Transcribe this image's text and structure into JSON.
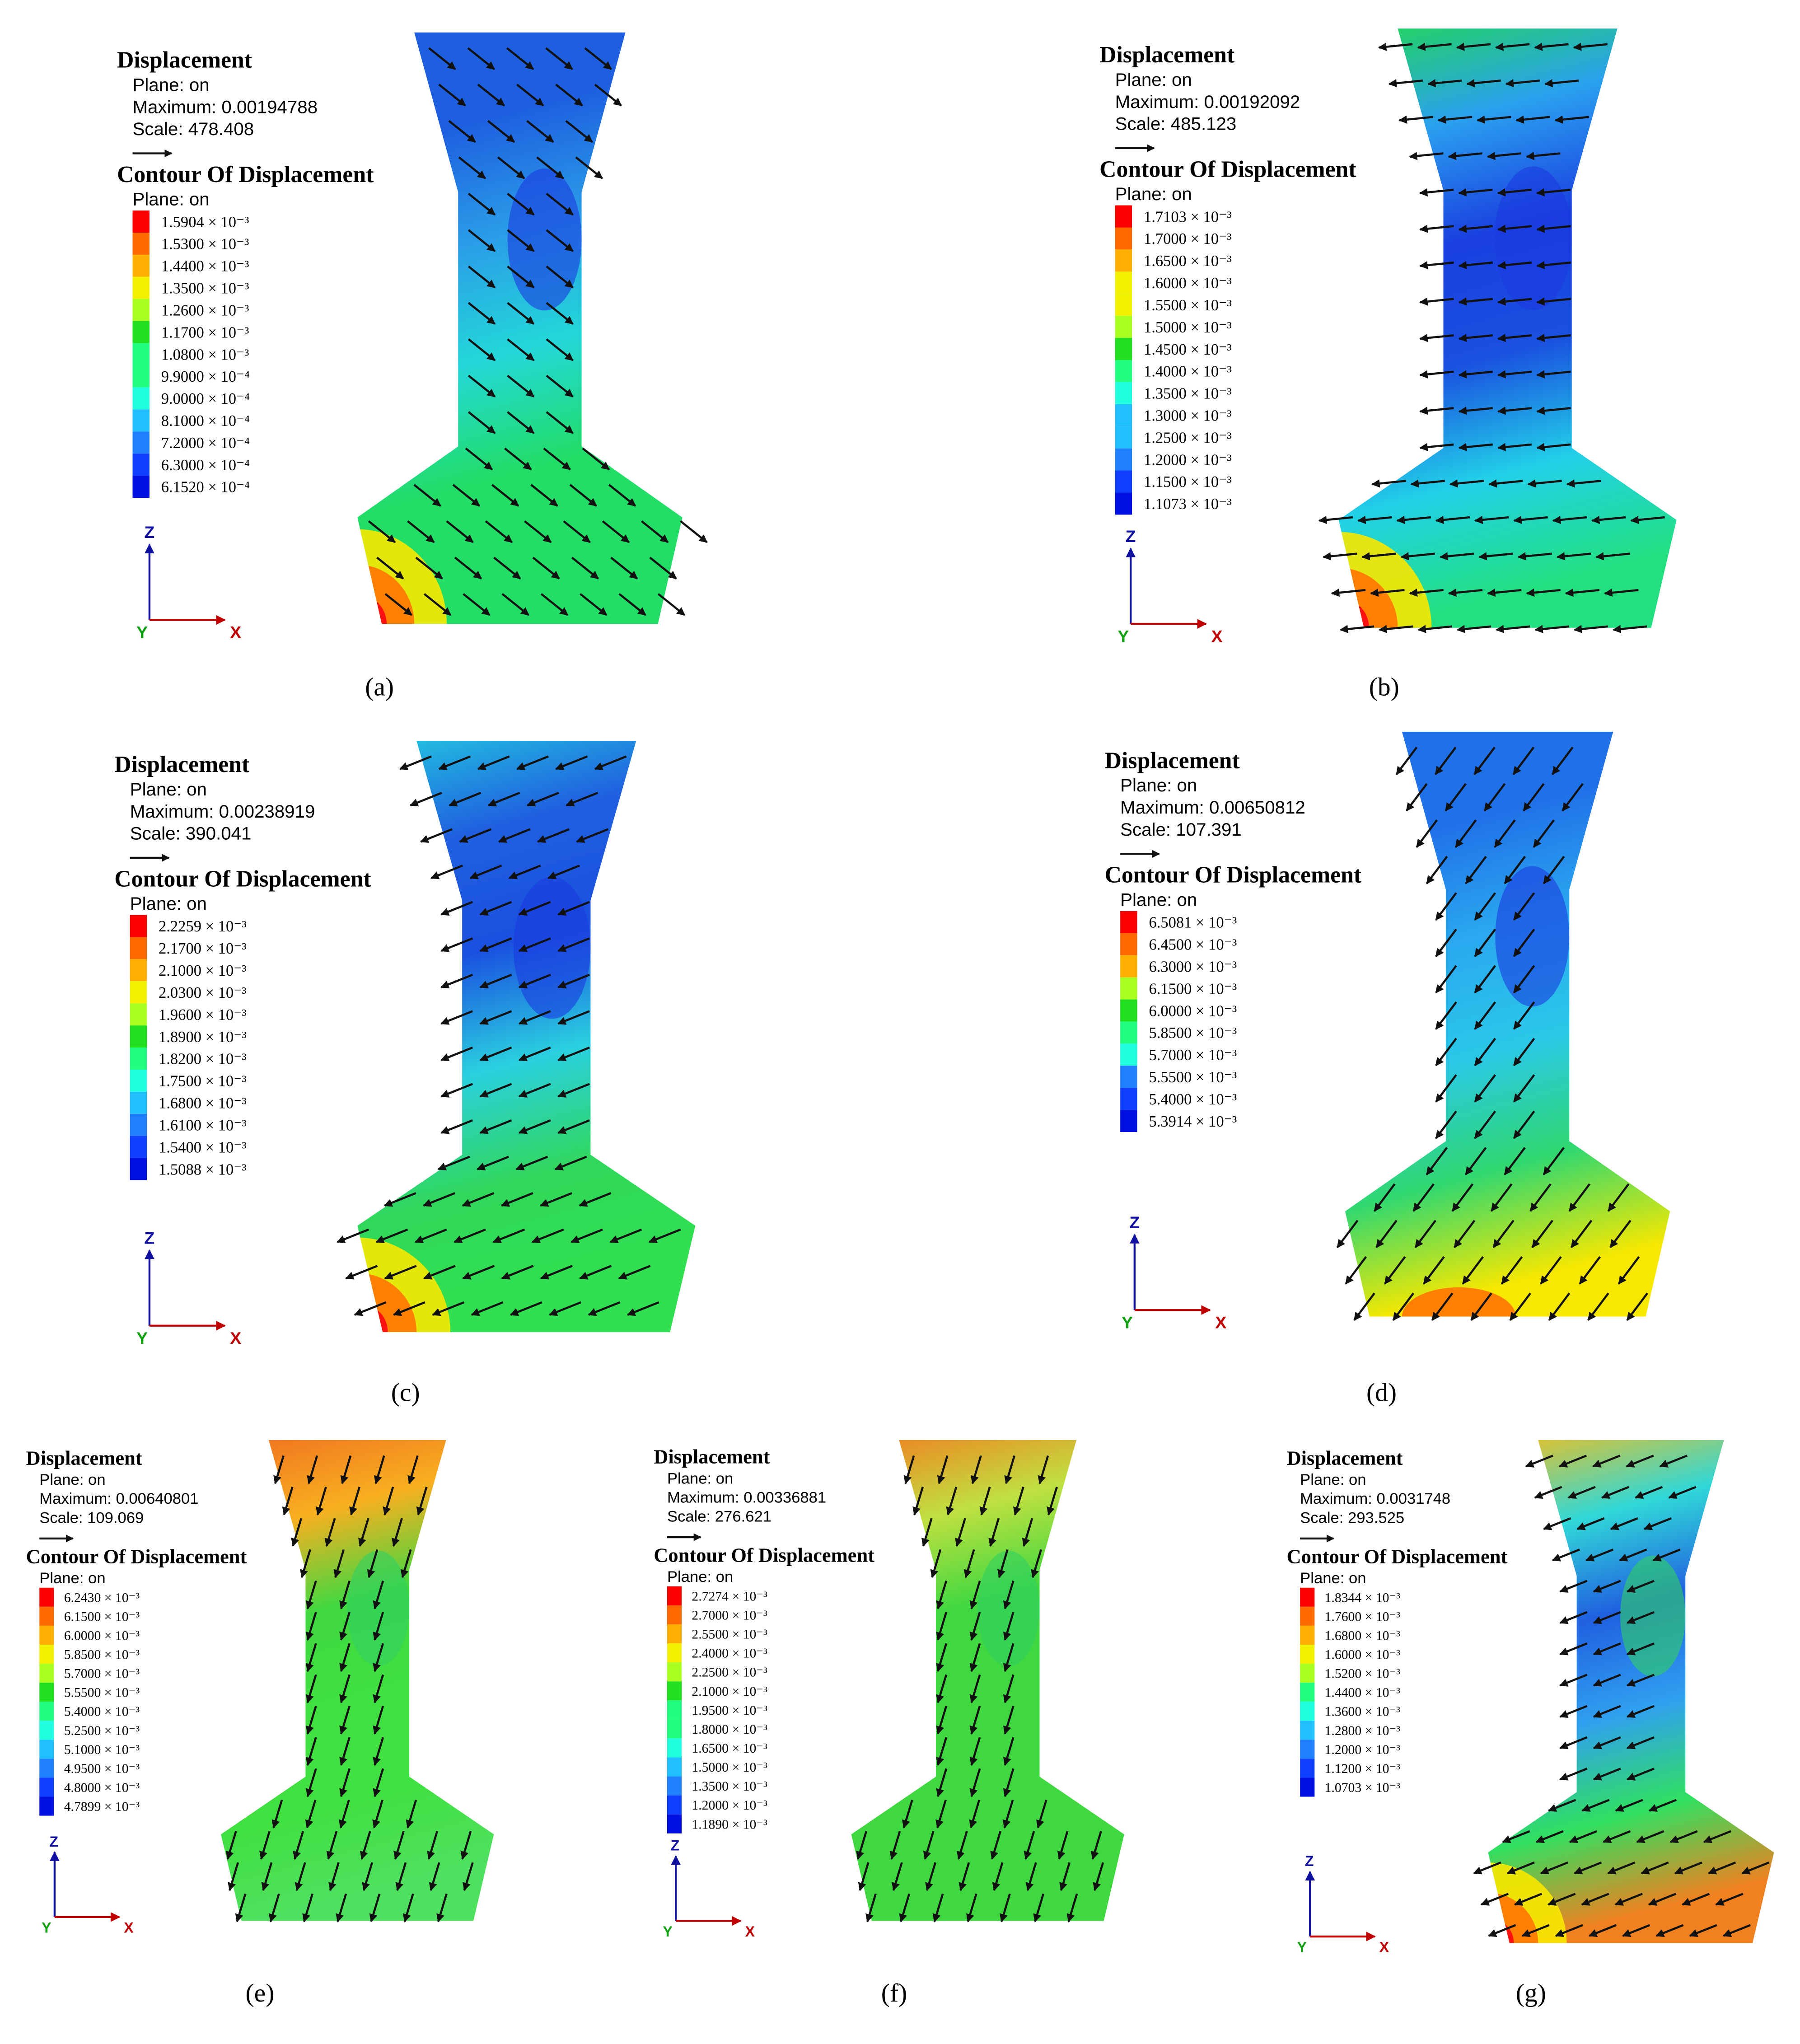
{
  "panels": [
    {
      "label": "(a)",
      "title": "Displacement",
      "plane": "Plane: on",
      "maximum": "Maximum: 0.00194788",
      "scale": "Scale: 478.408",
      "contour_title": "Contour Of Displacement",
      "contour_plane": "Plane: on",
      "levels": [
        "1.5904 × 10⁻³",
        "1.5300 × 10⁻³",
        "1.4400 × 10⁻³",
        "1.3500 × 10⁻³",
        "1.2600 × 10⁻³",
        "1.1700 × 10⁻³",
        "1.0800 × 10⁻³",
        "9.9000 × 10⁻⁴",
        "9.0000 × 10⁻⁴",
        "8.1000 × 10⁻⁴",
        "7.2000 × 10⁻⁴",
        "6.3000 × 10⁻⁴",
        "6.1520 × 10⁻⁴"
      ],
      "axes": {
        "z": "Z",
        "y": "Y",
        "x": "X"
      }
    },
    {
      "label": "(b)",
      "title": "Displacement",
      "plane": "Plane: on",
      "maximum": "Maximum: 0.00192092",
      "scale": "Scale: 485.123",
      "contour_title": "Contour Of Displacement",
      "contour_plane": "Plane: on",
      "levels": [
        "1.7103 × 10⁻³",
        "1.7000 × 10⁻³",
        "1.6500 × 10⁻³",
        "1.6000 × 10⁻³",
        "1.5500 × 10⁻³",
        "1.5000 × 10⁻³",
        "1.4500 × 10⁻³",
        "1.4000 × 10⁻³",
        "1.3500 × 10⁻³",
        "1.3000 × 10⁻³",
        "1.2500 × 10⁻³",
        "1.2000 × 10⁻³",
        "1.1500 × 10⁻³",
        "1.1073 × 10⁻³"
      ],
      "axes": {
        "z": "Z",
        "y": "Y",
        "x": "X"
      }
    },
    {
      "label": "(c)",
      "title": "Displacement",
      "plane": "Plane: on",
      "maximum": "Maximum: 0.00238919",
      "scale": "Scale: 390.041",
      "contour_title": "Contour Of Displacement",
      "contour_plane": "Plane: on",
      "levels": [
        "2.2259 × 10⁻³",
        "2.1700 × 10⁻³",
        "2.1000 × 10⁻³",
        "2.0300 × 10⁻³",
        "1.9600 × 10⁻³",
        "1.8900 × 10⁻³",
        "1.8200 × 10⁻³",
        "1.7500 × 10⁻³",
        "1.6800 × 10⁻³",
        "1.6100 × 10⁻³",
        "1.5400 × 10⁻³",
        "1.5088 × 10⁻³"
      ],
      "axes": {
        "z": "Z",
        "y": "Y",
        "x": "X"
      }
    },
    {
      "label": "(d)",
      "title": "Displacement",
      "plane": "Plane: on",
      "maximum": "Maximum: 0.00650812",
      "scale": "Scale: 107.391",
      "contour_title": "Contour Of Displacement",
      "contour_plane": "Plane: on",
      "levels": [
        "6.5081 × 10⁻³",
        "6.4500 × 10⁻³",
        "6.3000 × 10⁻³",
        "6.1500 × 10⁻³",
        "6.0000 × 10⁻³",
        "5.8500 × 10⁻³",
        "5.7000 × 10⁻³",
        "5.5500 × 10⁻³",
        "5.4000 × 10⁻³",
        "5.3914 × 10⁻³"
      ],
      "axes": {
        "z": "Z",
        "y": "Y",
        "x": "X"
      }
    },
    {
      "label": "(e)",
      "title": "Displacement",
      "plane": "Plane: on",
      "maximum": "Maximum: 0.00640801",
      "scale": "Scale: 109.069",
      "contour_title": "Contour Of Displacement",
      "contour_plane": "Plane: on",
      "levels": [
        "6.2430 × 10⁻³",
        "6.1500 × 10⁻³",
        "6.0000 × 10⁻³",
        "5.8500 × 10⁻³",
        "5.7000 × 10⁻³",
        "5.5500 × 10⁻³",
        "5.4000 × 10⁻³",
        "5.2500 × 10⁻³",
        "5.1000 × 10⁻³",
        "4.9500 × 10⁻³",
        "4.8000 × 10⁻³",
        "4.7899 × 10⁻³"
      ],
      "axes": {
        "z": "Z",
        "y": "Y",
        "x": "X"
      }
    },
    {
      "label": "(f)",
      "title": "Displacement",
      "plane": "Plane: on",
      "maximum": "Maximum: 0.00336881",
      "scale": "Scale: 276.621",
      "contour_title": "Contour Of Displacement",
      "contour_plane": "Plane: on",
      "levels": [
        "2.7274 × 10⁻³",
        "2.7000 × 10⁻³",
        "2.5500 × 10⁻³",
        "2.4000 × 10⁻³",
        "2.2500 × 10⁻³",
        "2.1000 × 10⁻³",
        "1.9500 × 10⁻³",
        "1.8000 × 10⁻³",
        "1.6500 × 10⁻³",
        "1.5000 × 10⁻³",
        "1.3500 × 10⁻³",
        "1.2000 × 10⁻³",
        "1.1890 × 10⁻³"
      ],
      "axes": {
        "z": "Z",
        "y": "Y",
        "x": "X"
      }
    },
    {
      "label": "(g)",
      "title": "Displacement",
      "plane": "Plane: on",
      "maximum": "Maximum: 0.0031748",
      "scale": "Scale: 293.525",
      "contour_title": "Contour Of Displacement",
      "contour_plane": "Plane: on",
      "levels": [
        "1.8344 × 10⁻³",
        "1.7600 × 10⁻³",
        "1.6800 × 10⁻³",
        "1.6000 × 10⁻³",
        "1.5200 × 10⁻³",
        "1.4400 × 10⁻³",
        "1.3600 × 10⁻³",
        "1.2800 × 10⁻³",
        "1.2000 × 10⁻³",
        "1.1200 × 10⁻³",
        "1.0703 × 10⁻³"
      ],
      "axes": {
        "z": "Z",
        "y": "Y",
        "x": "X"
      }
    }
  ]
}
